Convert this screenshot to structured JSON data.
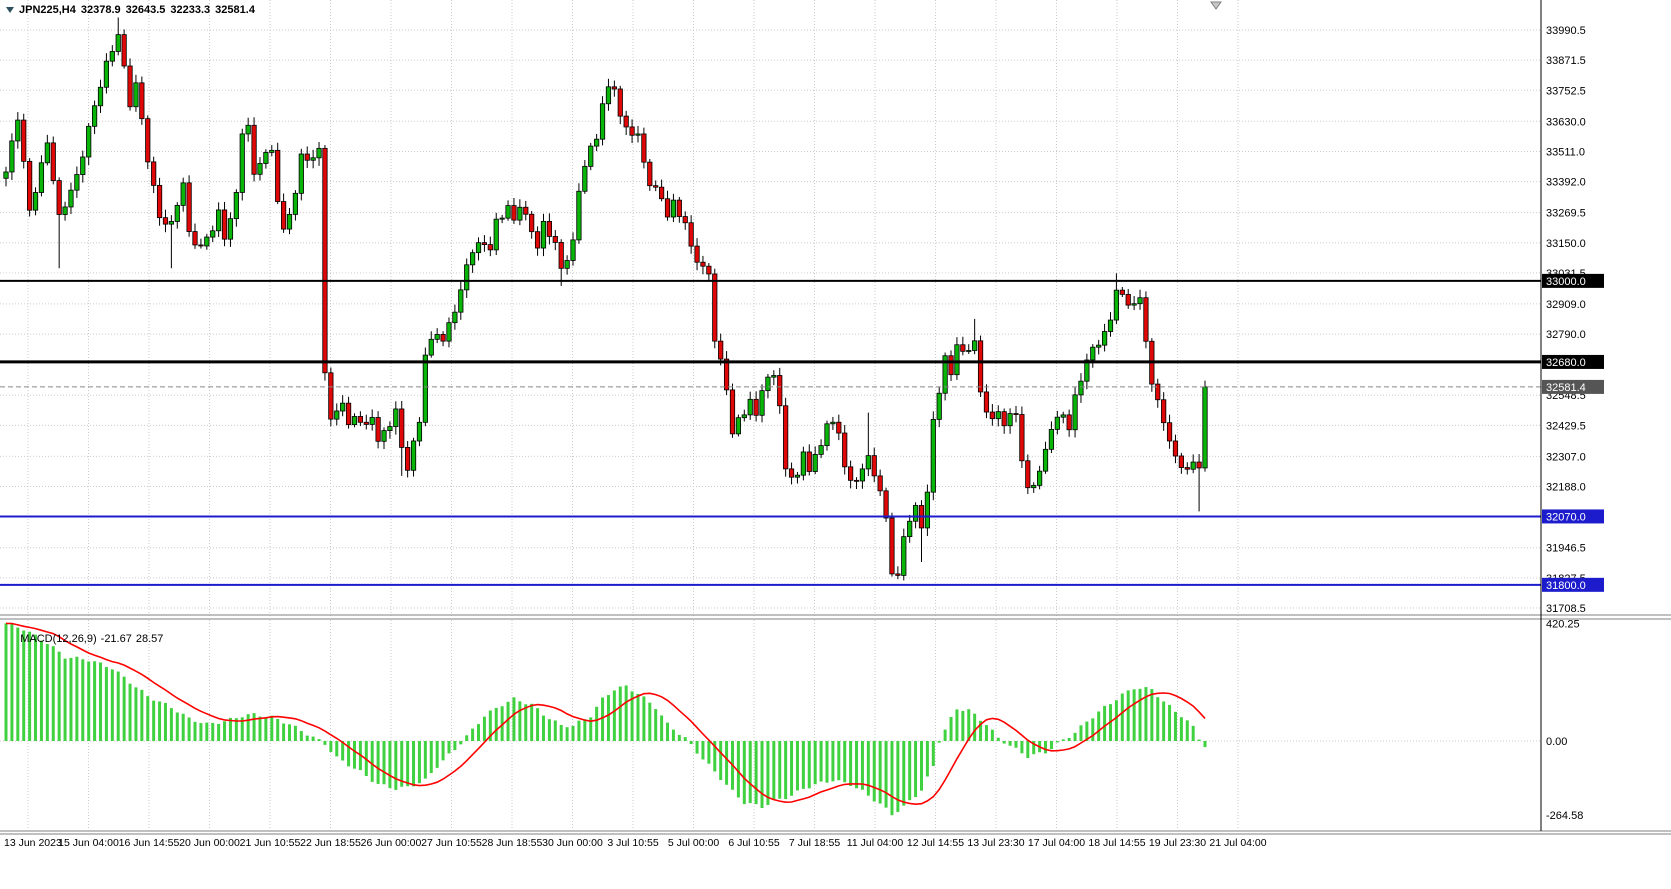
{
  "header": {
    "symbol_label": "JPN225,H4",
    "open": "32378.9",
    "high": "32643.5",
    "low": "32233.3",
    "close": "32581.4"
  },
  "macd_label": {
    "name": "MACD(12,26,9)",
    "value": "-21.67",
    "signal": "28.57"
  },
  "colors": {
    "background": "#ffffff",
    "grid": "#cbcbcb",
    "bull": "#09b509",
    "bear": "#e00707",
    "outline": "#000000",
    "wick": "#000000",
    "macd_hist": "#3fd13f",
    "macd_signal": "#ff0000",
    "level_black": "#000000",
    "level_blue": "#1c1ccd",
    "current_line": "#888888",
    "current_bg": "#555555",
    "separator": "#9a9a9a",
    "axis_text": "#000000"
  },
  "chart_data": {
    "type": "candlestick",
    "symbol": "JPN225",
    "timeframe": "H4",
    "current_bar": {
      "open": 32378.9,
      "high": 32643.5,
      "low": 32233.3,
      "close": 32581.4
    },
    "current_price": 32581.4,
    "candle_count": 204,
    "y_range_approx": [
      31660,
      34110
    ],
    "y_ticks": [
      33990.5,
      33871.5,
      33752.5,
      33630.0,
      33511.0,
      33392.0,
      33269.5,
      33150.0,
      33031.5,
      32909.0,
      32790.0,
      32548.5,
      32429.5,
      32307.0,
      32188.0,
      31946.5,
      31827.5,
      31708.5
    ],
    "x_labels": [
      "13 Jun 2023",
      "15 Jun 04:00",
      "16 Jun 14:55",
      "20 Jun 00:00",
      "21 Jun 10:55",
      "22 Jun 18:55",
      "26 Jun 00:00",
      "27 Jun 10:55",
      "28 Jun 18:55",
      "30 Jun 00:00",
      "3 Jul 10:55",
      "5 Jul 00:00",
      "6 Jul 10:55",
      "7 Jul 18:55",
      "11 Jul 04:00",
      "12 Jul 14:55",
      "13 Jul 23:30",
      "17 Jul 04:00",
      "18 Jul 14:55",
      "19 Jul 23:30",
      "21 Jul 04:00"
    ],
    "levels": [
      {
        "price": 33000.0,
        "color": "black",
        "width": 2
      },
      {
        "price": 32680.0,
        "color": "black",
        "width": 3
      },
      {
        "price": 32070.0,
        "color": "blue",
        "width": 2
      },
      {
        "price": 31800.0,
        "color": "blue",
        "width": 2
      }
    ],
    "price_path_anchors": [
      [
        0,
        33430
      ],
      [
        2,
        33640
      ],
      [
        4,
        33280
      ],
      [
        7,
        33550
      ],
      [
        9,
        33240
      ],
      [
        12,
        33420
      ],
      [
        14,
        33600
      ],
      [
        17,
        33850
      ],
      [
        19,
        33985
      ],
      [
        21,
        33700
      ],
      [
        22,
        33770
      ],
      [
        24,
        33480
      ],
      [
        26,
        33260
      ],
      [
        28,
        33220
      ],
      [
        30,
        33380
      ],
      [
        31,
        33180
      ],
      [
        33,
        33140
      ],
      [
        35,
        33210
      ],
      [
        36,
        33260
      ],
      [
        37,
        33160
      ],
      [
        39,
        33340
      ],
      [
        40,
        33600
      ],
      [
        41,
        33620
      ],
      [
        42,
        33410
      ],
      [
        43,
        33470
      ],
      [
        45,
        33510
      ],
      [
        46,
        33330
      ],
      [
        47,
        33200
      ],
      [
        49,
        33350
      ],
      [
        50,
        33480
      ],
      [
        52,
        33480
      ],
      [
        53,
        33520
      ],
      [
        54,
        32660
      ],
      [
        55,
        32450
      ],
      [
        57,
        32520
      ],
      [
        58,
        32410
      ],
      [
        59,
        32470
      ],
      [
        61,
        32430
      ],
      [
        62,
        32480
      ],
      [
        63,
        32360
      ],
      [
        65,
        32430
      ],
      [
        66,
        32480
      ],
      [
        67,
        32350
      ],
      [
        68,
        32270
      ],
      [
        70,
        32450
      ],
      [
        71,
        32700
      ],
      [
        73,
        32800
      ],
      [
        74,
        32760
      ],
      [
        75,
        32840
      ],
      [
        77,
        32950
      ],
      [
        78,
        33060
      ],
      [
        79,
        33110
      ],
      [
        81,
        33160
      ],
      [
        82,
        33130
      ],
      [
        83,
        33240
      ],
      [
        85,
        33280
      ],
      [
        86,
        33230
      ],
      [
        87,
        33300
      ],
      [
        89,
        33210
      ],
      [
        90,
        33140
      ],
      [
        91,
        33220
      ],
      [
        93,
        33140
      ],
      [
        94,
        33040
      ],
      [
        96,
        33160
      ],
      [
        97,
        33360
      ],
      [
        98,
        33460
      ],
      [
        100,
        33560
      ],
      [
        101,
        33700
      ],
      [
        102,
        33760
      ],
      [
        103,
        33780
      ],
      [
        104,
        33650
      ],
      [
        105,
        33600
      ],
      [
        107,
        33560
      ],
      [
        108,
        33470
      ],
      [
        109,
        33390
      ],
      [
        111,
        33340
      ],
      [
        112,
        33250
      ],
      [
        113,
        33300
      ],
      [
        115,
        33220
      ],
      [
        116,
        33140
      ],
      [
        118,
        33050
      ],
      [
        119,
        33030
      ],
      [
        120,
        32760
      ],
      [
        122,
        32580
      ],
      [
        123,
        32400
      ],
      [
        124,
        32460
      ],
      [
        126,
        32520
      ],
      [
        127,
        32460
      ],
      [
        128,
        32570
      ],
      [
        130,
        32640
      ],
      [
        131,
        32520
      ],
      [
        132,
        32250
      ],
      [
        134,
        32220
      ],
      [
        135,
        32310
      ],
      [
        136,
        32260
      ],
      [
        138,
        32360
      ],
      [
        139,
        32450
      ],
      [
        141,
        32400
      ],
      [
        142,
        32260
      ],
      [
        143,
        32200
      ],
      [
        145,
        32260
      ],
      [
        146,
        32310
      ],
      [
        147,
        32240
      ],
      [
        149,
        32060
      ],
      [
        150,
        31850
      ],
      [
        151,
        31830
      ],
      [
        152,
        32010
      ],
      [
        154,
        32100
      ],
      [
        155,
        32030
      ],
      [
        156,
        32150
      ],
      [
        157,
        32450
      ],
      [
        159,
        32700
      ],
      [
        160,
        32640
      ],
      [
        161,
        32750
      ],
      [
        162,
        32700
      ],
      [
        164,
        32760
      ],
      [
        165,
        32560
      ],
      [
        167,
        32450
      ],
      [
        168,
        32480
      ],
      [
        169,
        32430
      ],
      [
        171,
        32480
      ],
      [
        172,
        32300
      ],
      [
        173,
        32180
      ],
      [
        175,
        32240
      ],
      [
        176,
        32320
      ],
      [
        177,
        32420
      ],
      [
        179,
        32480
      ],
      [
        180,
        32430
      ],
      [
        181,
        32540
      ],
      [
        183,
        32680
      ],
      [
        184,
        32720
      ],
      [
        186,
        32800
      ],
      [
        187,
        32850
      ],
      [
        188,
        32980
      ],
      [
        189,
        32930
      ],
      [
        190,
        32900
      ],
      [
        192,
        32920
      ],
      [
        193,
        32780
      ],
      [
        194,
        32600
      ],
      [
        196,
        32450
      ],
      [
        197,
        32350
      ],
      [
        198,
        32300
      ],
      [
        200,
        32250
      ],
      [
        201,
        32300
      ],
      [
        202,
        32270
      ],
      [
        203,
        32581.4
      ]
    ],
    "wick_overrides": {
      "9": {
        "low": 33050
      },
      "19": {
        "high": 34040
      },
      "28": {
        "low": 33050
      },
      "67": {
        "low": 32230
      },
      "94": {
        "low": 32980
      },
      "146": {
        "high": 32480
      },
      "155": {
        "low": 31890
      },
      "164": {
        "high": 32850
      },
      "188": {
        "high": 33030
      },
      "202": {
        "low": 32090
      }
    },
    "macd": {
      "params": "12,26,9",
      "last_macd": -21.67,
      "last_signal": 28.57,
      "scale": [
        420.25,
        0.0,
        -264.58
      ],
      "histogram_anchors": [
        [
          0,
          420
        ],
        [
          3,
          400
        ],
        [
          7,
          350
        ],
        [
          10,
          300
        ],
        [
          14,
          290
        ],
        [
          18,
          260
        ],
        [
          21,
          210
        ],
        [
          24,
          160
        ],
        [
          28,
          120
        ],
        [
          31,
          80
        ],
        [
          34,
          60
        ],
        [
          37,
          70
        ],
        [
          40,
          90
        ],
        [
          42,
          95
        ],
        [
          45,
          85
        ],
        [
          48,
          60
        ],
        [
          51,
          25
        ],
        [
          54,
          -10
        ],
        [
          56,
          -60
        ],
        [
          60,
          -110
        ],
        [
          63,
          -155
        ],
        [
          66,
          -170
        ],
        [
          68,
          -165
        ],
        [
          71,
          -140
        ],
        [
          73,
          -90
        ],
        [
          76,
          -30
        ],
        [
          79,
          40
        ],
        [
          81,
          90
        ],
        [
          84,
          130
        ],
        [
          86,
          150
        ],
        [
          89,
          130
        ],
        [
          91,
          95
        ],
        [
          94,
          55
        ],
        [
          96,
          55
        ],
        [
          99,
          90
        ],
        [
          101,
          150
        ],
        [
          103,
          185
        ],
        [
          105,
          195
        ],
        [
          107,
          170
        ],
        [
          110,
          120
        ],
        [
          112,
          60
        ],
        [
          115,
          10
        ],
        [
          117,
          -40
        ],
        [
          120,
          -110
        ],
        [
          123,
          -180
        ],
        [
          125,
          -220
        ],
        [
          128,
          -235
        ],
        [
          130,
          -215
        ],
        [
          133,
          -195
        ],
        [
          135,
          -170
        ],
        [
          138,
          -150
        ],
        [
          140,
          -140
        ],
        [
          143,
          -155
        ],
        [
          145,
          -180
        ],
        [
          148,
          -225
        ],
        [
          150,
          -262
        ],
        [
          152,
          -235
        ],
        [
          155,
          -175
        ],
        [
          157,
          -90
        ],
        [
          158,
          0
        ],
        [
          160,
          80
        ],
        [
          161,
          115
        ],
        [
          163,
          110
        ],
        [
          166,
          60
        ],
        [
          168,
          10
        ],
        [
          171,
          -30
        ],
        [
          173,
          -55
        ],
        [
          176,
          -40
        ],
        [
          178,
          -10
        ],
        [
          181,
          30
        ],
        [
          183,
          70
        ],
        [
          186,
          120
        ],
        [
          189,
          165
        ],
        [
          191,
          190
        ],
        [
          194,
          185
        ],
        [
          196,
          140
        ],
        [
          199,
          90
        ],
        [
          201,
          50
        ],
        [
          202,
          10
        ],
        [
          203,
          -21.67
        ]
      ]
    }
  }
}
